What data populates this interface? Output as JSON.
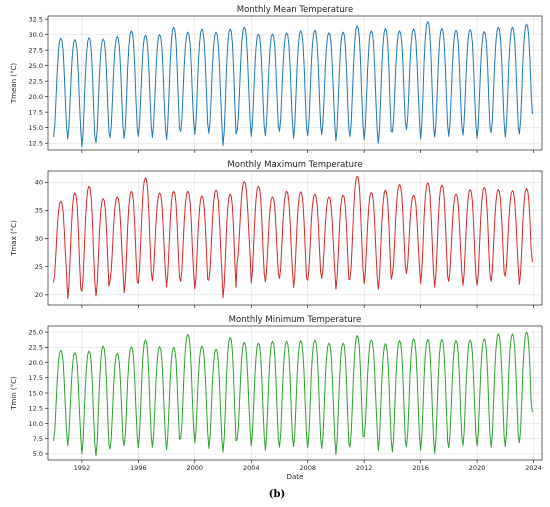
{
  "caption": "(b)",
  "chart_data": [
    {
      "type": "line",
      "title": "Monthly Mean Temperature",
      "xlabel": "",
      "ylabel": "Tmean (°C)",
      "color": "#1f77b4",
      "xlim": [
        1989.6,
        2024.6
      ],
      "ylim": [
        11.4,
        33.0
      ],
      "xticks": [
        1992,
        1996,
        2000,
        2004,
        2008,
        2012,
        2016,
        2020,
        2024
      ],
      "xtick_labels": [],
      "yticks": [
        12.5,
        15.0,
        17.5,
        20.0,
        22.5,
        25.0,
        27.5,
        30.0,
        32.5
      ],
      "ytick_labels": [
        "12.5",
        "15.0",
        "17.5",
        "20.0",
        "22.5",
        "25.0",
        "27.5",
        "30.0",
        "32.5"
      ],
      "grid": true,
      "x_start": "1990-01",
      "x_end": "2023-12",
      "annual_min": [
        13.5,
        13.2,
        11.9,
        12.6,
        13.4,
        13.3,
        13.6,
        13.4,
        13.1,
        14.4,
        13.9,
        14.1,
        12.1,
        14.5,
        13.6,
        13.7,
        14.4,
        13.3,
        13.7,
        13.9,
        12.9,
        13.6,
        13.1,
        12.5,
        14.3,
        14.7,
        13.2,
        13.5,
        13.6,
        13.8,
        13.3,
        14.2,
        13.5,
        14.0
      ],
      "annual_max": [
        29.4,
        29.2,
        29.5,
        29.3,
        29.7,
        30.6,
        29.9,
        30.0,
        31.2,
        30.4,
        30.9,
        30.4,
        30.9,
        31.2,
        30.1,
        30.1,
        30.3,
        30.6,
        30.7,
        30.3,
        30.4,
        31.4,
        30.6,
        31.0,
        30.6,
        30.9,
        32.1,
        31.0,
        30.7,
        30.8,
        30.5,
        31.2,
        31.2,
        31.7
      ],
      "last_value": 17.2
    },
    {
      "type": "line",
      "title": "Monthly Maximum Temperature",
      "xlabel": "",
      "ylabel": "Tmax (°C)",
      "color": "#d62728",
      "xlim": [
        1989.6,
        2024.6
      ],
      "ylim": [
        18.2,
        42.0
      ],
      "xticks": [
        1992,
        1996,
        2000,
        2004,
        2008,
        2012,
        2016,
        2020,
        2024
      ],
      "xtick_labels": [],
      "yticks": [
        20,
        25,
        30,
        35,
        40
      ],
      "ytick_labels": [
        "20",
        "25",
        "30",
        "35",
        "40"
      ],
      "grid": true,
      "x_start": "1990-01",
      "x_end": "2023-12",
      "annual_min": [
        22.2,
        19.3,
        20.6,
        19.8,
        22.6,
        20.4,
        22.1,
        22.5,
        21.4,
        22.4,
        21.1,
        22.6,
        19.5,
        25.6,
        22.1,
        22.3,
        22.9,
        21.3,
        22.6,
        22.9,
        21.0,
        22.8,
        22.0,
        21.0,
        23.6,
        23.8,
        22.0,
        21.4,
        22.4,
        21.7,
        21.7,
        22.4,
        23.3,
        21.9
      ],
      "annual_max": [
        36.6,
        38.1,
        39.3,
        37.1,
        37.4,
        38.4,
        40.8,
        38.1,
        38.4,
        38.4,
        37.6,
        38.6,
        37.9,
        40.1,
        39.3,
        37.4,
        38.4,
        38.3,
        37.9,
        37.4,
        37.7,
        41.1,
        38.2,
        38.6,
        39.6,
        37.7,
        39.9,
        39.5,
        37.9,
        38.7,
        39.1,
        38.7,
        38.5,
        38.9
      ],
      "last_value": 25.8
    },
    {
      "type": "line",
      "title": "Monthly Minimum Temperature",
      "xlabel": "Date",
      "ylabel": "Tmin (°C)",
      "color": "#2ca02c",
      "xlim": [
        1989.6,
        2024.6
      ],
      "ylim": [
        4.0,
        26.0
      ],
      "xticks": [
        1992,
        1996,
        2000,
        2004,
        2008,
        2012,
        2016,
        2020,
        2024
      ],
      "xtick_labels": [
        "1992",
        "1996",
        "2000",
        "2004",
        "2008",
        "2012",
        "2016",
        "2020",
        "2024"
      ],
      "yticks": [
        5.0,
        7.5,
        10.0,
        12.5,
        15.0,
        17.5,
        20.0,
        22.5,
        25.0
      ],
      "ytick_labels": [
        "5.0",
        "7.5",
        "10.0",
        "12.5",
        "15.0",
        "17.5",
        "20.0",
        "22.5",
        "25.0"
      ],
      "grid": true,
      "x_start": "1990-01",
      "x_end": "2023-12",
      "annual_min": [
        7.1,
        6.4,
        5.0,
        4.7,
        5.8,
        6.3,
        6.0,
        6.1,
        5.7,
        7.6,
        6.9,
        5.9,
        5.3,
        7.3,
        6.3,
        5.6,
        6.1,
        6.2,
        6.0,
        5.9,
        4.9,
        6.1,
        7.8,
        5.5,
        5.3,
        6.2,
        5.6,
        5.1,
        6.0,
        6.4,
        6.3,
        6.1,
        6.2,
        6.8
      ],
      "annual_max": [
        22.0,
        21.6,
        21.9,
        22.7,
        21.5,
        22.6,
        23.7,
        22.6,
        22.5,
        24.6,
        22.7,
        22.2,
        24.1,
        23.3,
        23.2,
        23.5,
        23.5,
        23.6,
        23.7,
        23.2,
        23.2,
        24.4,
        23.7,
        23.1,
        23.6,
        23.9,
        23.8,
        23.8,
        23.6,
        23.7,
        23.9,
        24.7,
        24.7,
        25.0
      ],
      "last_value": 11.9
    }
  ]
}
